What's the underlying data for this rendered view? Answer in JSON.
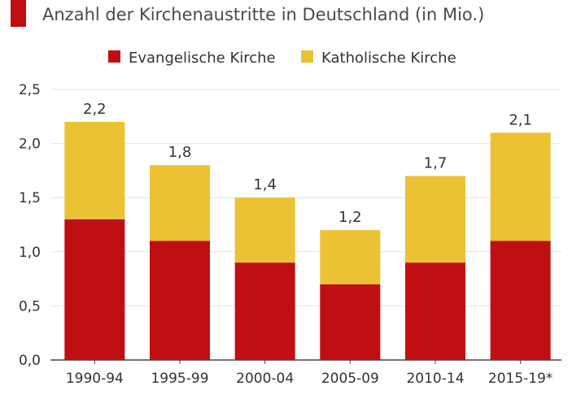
{
  "subtitle": "Anzahl der Kirchenaustritte in Deutschland (in Mio.)",
  "colors": {
    "evangelisch": "#c00f13",
    "katholisch": "#ebc233",
    "accent": "#c00f13",
    "axis": "#444444",
    "grid": "#e4e4e4"
  },
  "chart_data": {
    "type": "bar",
    "stacked": true,
    "title": "",
    "subtitle": "Anzahl der Kirchenaustritte in Deutschland (in Mio.)",
    "xlabel": "",
    "ylabel": "",
    "categories": [
      "1990-94",
      "1995-99",
      "2000-04",
      "2005-09",
      "2010-14",
      "2015-19*"
    ],
    "series": [
      {
        "name": "Evangelische Kirche",
        "values": [
          1.3,
          1.1,
          0.9,
          0.7,
          0.9,
          1.1
        ],
        "color": "#c00f13"
      },
      {
        "name": "Katholische Kirche",
        "values": [
          0.9,
          0.7,
          0.6,
          0.5,
          0.8,
          1.0
        ],
        "color": "#ebc233"
      }
    ],
    "totals": [
      "2,2",
      "1,8",
      "1,4",
      "1,2",
      "1,7",
      "2,1"
    ],
    "ylim": [
      0,
      2.5
    ],
    "yticks": [
      "0,0",
      "0,5",
      "1,0",
      "1,5",
      "2,0",
      "2,5"
    ],
    "grid": true,
    "legend": "top-center"
  }
}
